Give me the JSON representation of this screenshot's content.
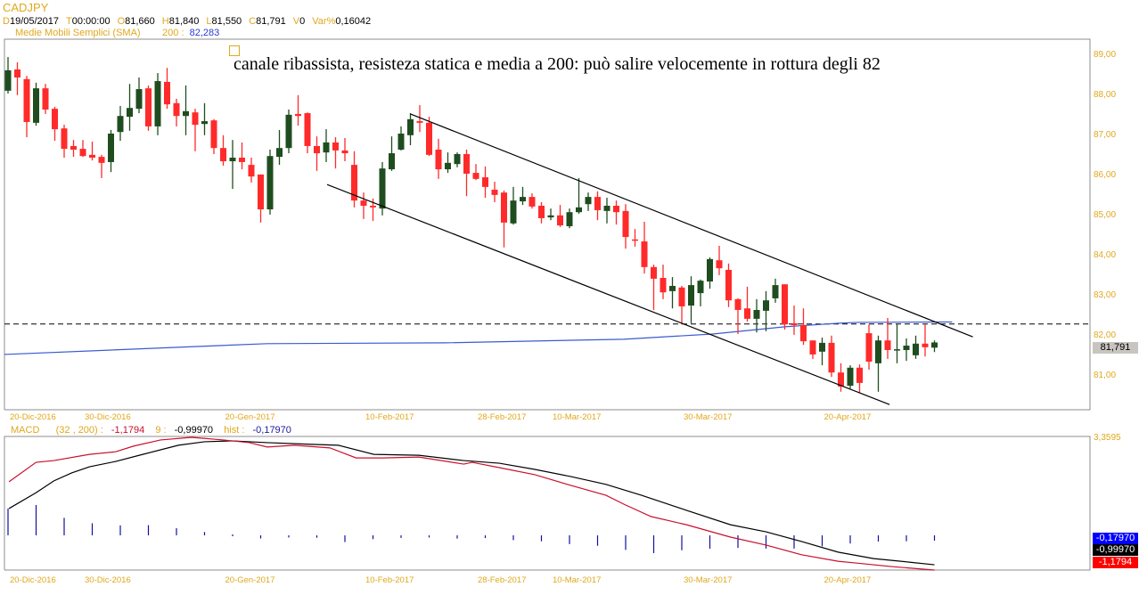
{
  "header": {
    "symbol": "CADJPY",
    "fields": [
      {
        "k": "D",
        "v": "19/05/2017"
      },
      {
        "k": "T",
        "v": "00:00:00"
      },
      {
        "k": "O",
        "v": "81,660"
      },
      {
        "k": "H",
        "v": "81,840"
      },
      {
        "k": "L",
        "v": "81,550"
      },
      {
        "k": "C",
        "v": "81,791"
      },
      {
        "k": "V",
        "v": "0"
      },
      {
        "k": "Var%",
        "v": "0,16042"
      }
    ],
    "sma_label": "Medie Mobili Semplici (SMA)",
    "sma_period": "200 :",
    "sma_value": "82,283"
  },
  "annotation": "canale ribassista, resisteza statica e media a 200: può salire velocemente in rottura degli 82",
  "macd_header": {
    "label": "MACD",
    "params": "(32 , 200) :",
    "macd_value": "-1,1794",
    "signal_label": "9 :",
    "signal_value": "-0,99970",
    "hist_label": "hist :",
    "hist_value": "-0,17970"
  },
  "price_tag": "81,791",
  "macd_tags": {
    "hist": "-0,17970",
    "signal": "-0,99970",
    "macd": "-1,1794"
  },
  "macd_top_label": "3,3595",
  "colors": {
    "up": "#1f4d1f",
    "down": "#ff2a2a",
    "sma": "#3a5bd0",
    "macd": "#c8102e",
    "signal": "#000000",
    "hist": "#1010a0",
    "axis": "#e0a81c"
  },
  "chart_data": [
    {
      "type": "candlestick",
      "title": "CADJPY",
      "ylim": [
        80.2,
        89.35
      ],
      "yticks": [
        {
          "value": 89,
          "label": "89,00"
        },
        {
          "value": 88,
          "label": "88,00"
        },
        {
          "value": 87,
          "label": "87,00"
        },
        {
          "value": 86,
          "label": "86,00"
        },
        {
          "value": 85,
          "label": "85,00"
        },
        {
          "value": 84,
          "label": "84,00"
        },
        {
          "value": 83,
          "label": "83,00"
        },
        {
          "value": 82,
          "label": "82,00"
        },
        {
          "value": 81,
          "label": "81,00"
        }
      ],
      "xticks": [
        {
          "index": 0,
          "label": "20-Dic-2016"
        },
        {
          "index": 8,
          "label": "30-Dic-2016"
        },
        {
          "index": 23,
          "label": "20-Gen-2017"
        },
        {
          "index": 38,
          "label": "10-Feb-2017"
        },
        {
          "index": 50,
          "label": "28-Feb-2017"
        },
        {
          "index": 58,
          "label": "10-Mar-2017"
        },
        {
          "index": 72,
          "label": "30-Mar-2017"
        },
        {
          "index": 87,
          "label": "20-Apr-2017"
        }
      ],
      "ohlc": [
        [
          88.07,
          88.91,
          88.0,
          88.58
        ],
        [
          88.6,
          88.78,
          87.96,
          88.4
        ],
        [
          88.36,
          88.44,
          86.91,
          87.29
        ],
        [
          87.27,
          88.27,
          87.2,
          88.13
        ],
        [
          88.13,
          88.24,
          87.49,
          87.6
        ],
        [
          87.62,
          87.67,
          86.82,
          87.11
        ],
        [
          87.13,
          87.22,
          86.4,
          86.62
        ],
        [
          86.69,
          86.84,
          86.42,
          86.6
        ],
        [
          86.62,
          86.84,
          86.42,
          86.44
        ],
        [
          86.47,
          86.8,
          86.33,
          86.4
        ],
        [
          86.42,
          86.47,
          85.89,
          86.27
        ],
        [
          86.29,
          87.09,
          86.04,
          87.0
        ],
        [
          87.04,
          87.69,
          86.82,
          87.44
        ],
        [
          87.42,
          88.24,
          87.07,
          87.64
        ],
        [
          87.62,
          88.4,
          87.51,
          88.11
        ],
        [
          88.13,
          88.2,
          87.07,
          87.18
        ],
        [
          87.18,
          88.51,
          86.96,
          88.31
        ],
        [
          88.29,
          88.64,
          87.62,
          87.73
        ],
        [
          87.76,
          87.87,
          87.18,
          87.44
        ],
        [
          87.44,
          88.2,
          86.96,
          87.56
        ],
        [
          87.53,
          87.62,
          86.56,
          87.22
        ],
        [
          87.24,
          87.76,
          86.96,
          87.31
        ],
        [
          87.33,
          87.36,
          86.49,
          86.64
        ],
        [
          86.64,
          86.96,
          86.2,
          86.31
        ],
        [
          86.31,
          86.84,
          85.62,
          86.4
        ],
        [
          86.4,
          86.78,
          86.11,
          86.29
        ],
        [
          86.22,
          86.4,
          85.78,
          85.93
        ],
        [
          85.98,
          85.98,
          84.78,
          85.11
        ],
        [
          85.11,
          86.6,
          84.98,
          86.44
        ],
        [
          86.42,
          87.09,
          86.22,
          86.64
        ],
        [
          86.64,
          87.6,
          86.51,
          87.47
        ],
        [
          87.49,
          87.96,
          87.2,
          87.44
        ],
        [
          87.51,
          87.53,
          86.51,
          86.69
        ],
        [
          86.69,
          86.93,
          86.07,
          86.51
        ],
        [
          86.53,
          87.11,
          86.29,
          86.78
        ],
        [
          86.78,
          86.91,
          86.13,
          86.58
        ],
        [
          86.58,
          86.89,
          86.31,
          86.51
        ],
        [
          86.22,
          86.56,
          85.16,
          85.33
        ],
        [
          85.33,
          85.53,
          84.87,
          85.2
        ],
        [
          85.2,
          85.38,
          84.82,
          85.16
        ],
        [
          85.13,
          86.29,
          84.96,
          86.13
        ],
        [
          86.11,
          86.93,
          86.07,
          86.51
        ],
        [
          86.6,
          87.18,
          86.58,
          87.0
        ],
        [
          86.96,
          87.51,
          86.71,
          87.36
        ],
        [
          87.31,
          87.71,
          87.04,
          87.27
        ],
        [
          87.27,
          87.42,
          86.44,
          86.47
        ],
        [
          86.6,
          86.87,
          85.87,
          86.11
        ],
        [
          86.11,
          86.53,
          86.02,
          86.27
        ],
        [
          86.24,
          86.53,
          86.16,
          86.49
        ],
        [
          86.49,
          86.6,
          85.44,
          86.0
        ],
        [
          86.02,
          86.24,
          85.84,
          85.87
        ],
        [
          85.91,
          86.18,
          85.4,
          85.67
        ],
        [
          85.6,
          85.8,
          85.29,
          85.47
        ],
        [
          85.53,
          85.58,
          84.16,
          84.78
        ],
        [
          84.76,
          85.67,
          84.73,
          85.33
        ],
        [
          85.31,
          85.67,
          85.22,
          85.42
        ],
        [
          85.42,
          85.51,
          85.13,
          85.18
        ],
        [
          85.2,
          85.29,
          84.76,
          84.89
        ],
        [
          84.91,
          85.13,
          84.84,
          84.96
        ],
        [
          84.96,
          85.22,
          84.67,
          84.71
        ],
        [
          84.69,
          85.13,
          84.64,
          85.04
        ],
        [
          85.04,
          85.89,
          85.0,
          85.16
        ],
        [
          85.24,
          85.53,
          85.07,
          85.42
        ],
        [
          85.42,
          85.56,
          84.84,
          85.09
        ],
        [
          85.07,
          85.4,
          84.76,
          85.2
        ],
        [
          85.2,
          85.33,
          84.73,
          85.04
        ],
        [
          85.07,
          85.24,
          84.13,
          84.42
        ],
        [
          84.36,
          84.62,
          84.18,
          84.33
        ],
        [
          84.31,
          84.8,
          83.51,
          83.67
        ],
        [
          83.67,
          83.73,
          82.6,
          83.38
        ],
        [
          83.4,
          83.73,
          82.87,
          83.04
        ],
        [
          83.07,
          83.42,
          82.64,
          83.2
        ],
        [
          83.16,
          83.2,
          82.24,
          82.69
        ],
        [
          82.71,
          83.44,
          82.27,
          83.22
        ],
        [
          83.02,
          83.36,
          82.69,
          83.33
        ],
        [
          83.31,
          83.91,
          83.13,
          83.87
        ],
        [
          83.84,
          84.2,
          83.47,
          83.64
        ],
        [
          83.6,
          83.76,
          82.67,
          82.84
        ],
        [
          82.87,
          82.89,
          82.0,
          82.6
        ],
        [
          82.64,
          83.18,
          82.31,
          82.38
        ],
        [
          82.38,
          82.87,
          82.04,
          82.6
        ],
        [
          82.58,
          83.07,
          82.07,
          82.84
        ],
        [
          82.89,
          83.38,
          82.78,
          83.22
        ],
        [
          83.24,
          83.24,
          82.11,
          82.24
        ],
        [
          82.27,
          82.71,
          81.98,
          82.22
        ],
        [
          82.22,
          82.64,
          81.73,
          81.82
        ],
        [
          81.84,
          81.84,
          81.38,
          81.49
        ],
        [
          81.56,
          81.91,
          81.22,
          81.78
        ],
        [
          81.78,
          81.96,
          80.93,
          81.04
        ],
        [
          81.04,
          81.27,
          80.56,
          80.69
        ],
        [
          80.71,
          81.22,
          80.64,
          81.16
        ],
        [
          81.16,
          81.24,
          80.53,
          80.78
        ],
        [
          82.02,
          82.24,
          81.11,
          81.31
        ],
        [
          81.27,
          81.96,
          80.56,
          81.84
        ],
        [
          81.84,
          82.4,
          81.38,
          81.6
        ],
        [
          81.6,
          82.24,
          81.27,
          81.62
        ],
        [
          81.6,
          81.89,
          81.33,
          81.71
        ],
        [
          81.47,
          81.96,
          81.38,
          81.76
        ],
        [
          81.76,
          82.24,
          81.44,
          81.67
        ],
        [
          81.66,
          81.84,
          81.55,
          81.79
        ]
      ],
      "sma200": [
        [
          -0.4,
          81.49
        ],
        [
          18.2,
          81.67
        ],
        [
          27.7,
          81.76
        ],
        [
          46.7,
          81.78
        ],
        [
          65.8,
          81.87
        ],
        [
          75.3,
          82.0
        ],
        [
          83,
          82.18
        ],
        [
          88.8,
          82.27
        ],
        [
          90.7,
          82.29
        ],
        [
          99,
          82.3
        ],
        [
          100.9,
          82.3
        ]
      ],
      "resistance_level": 82.25,
      "trendlines": [
        {
          "name": "upper-channel",
          "from": [
            43.0,
            87.49
          ],
          "to": [
            103.1,
            81.93
          ]
        },
        {
          "name": "lower-channel",
          "from": [
            34.1,
            85.73
          ],
          "to": [
            94.2,
            80.24
          ]
        }
      ]
    },
    {
      "type": "line",
      "title": "MACD (32 , 200)",
      "ylim": [
        -1.1794,
        3.3595
      ],
      "macd": [
        [
          0.1,
          1.82
        ],
        [
          3,
          2.48
        ],
        [
          4.9,
          2.54
        ],
        [
          8.7,
          2.75
        ],
        [
          11.5,
          2.84
        ],
        [
          13.4,
          3.03
        ],
        [
          16.3,
          3.24
        ],
        [
          19.6,
          3.33
        ],
        [
          23,
          3.24
        ],
        [
          25.8,
          3.15
        ],
        [
          27.7,
          3.0
        ],
        [
          30.6,
          3.06
        ],
        [
          34.4,
          2.97
        ],
        [
          37.2,
          2.63
        ],
        [
          40.1,
          2.63
        ],
        [
          43.9,
          2.66
        ],
        [
          48.7,
          2.42
        ],
        [
          49.6,
          2.48
        ],
        [
          52.5,
          2.3
        ],
        [
          56.3,
          2.06
        ],
        [
          60.1,
          1.7
        ],
        [
          63.9,
          1.36
        ],
        [
          65.8,
          1.06
        ],
        [
          68.7,
          0.64
        ],
        [
          72.5,
          0.36
        ],
        [
          77.2,
          -0.06
        ],
        [
          81,
          -0.33
        ],
        [
          84.8,
          -0.66
        ],
        [
          88.7,
          -0.88
        ],
        [
          90.6,
          -0.94
        ],
        [
          94.4,
          -1.06
        ],
        [
          99,
          -1.1794
        ]
      ],
      "signal": [
        [
          0.1,
          0.91
        ],
        [
          3,
          1.45
        ],
        [
          4.9,
          1.85
        ],
        [
          6.8,
          2.12
        ],
        [
          8.7,
          2.33
        ],
        [
          11.5,
          2.51
        ],
        [
          14.4,
          2.75
        ],
        [
          18.2,
          3.06
        ],
        [
          21,
          3.18
        ],
        [
          23.9,
          3.21
        ],
        [
          27.7,
          3.15
        ],
        [
          32.5,
          3.09
        ],
        [
          35.3,
          3.06
        ],
        [
          39.1,
          2.75
        ],
        [
          43.9,
          2.72
        ],
        [
          48.7,
          2.54
        ],
        [
          52.5,
          2.45
        ],
        [
          56.3,
          2.24
        ],
        [
          60.1,
          2.0
        ],
        [
          63.9,
          1.73
        ],
        [
          67.7,
          1.36
        ],
        [
          72.5,
          0.85
        ],
        [
          77.2,
          0.36
        ],
        [
          81,
          0.12
        ],
        [
          84.8,
          -0.21
        ],
        [
          88.7,
          -0.57
        ],
        [
          92.5,
          -0.79
        ],
        [
          96.3,
          -0.91
        ],
        [
          99,
          -0.9997
        ]
      ]
    }
  ]
}
